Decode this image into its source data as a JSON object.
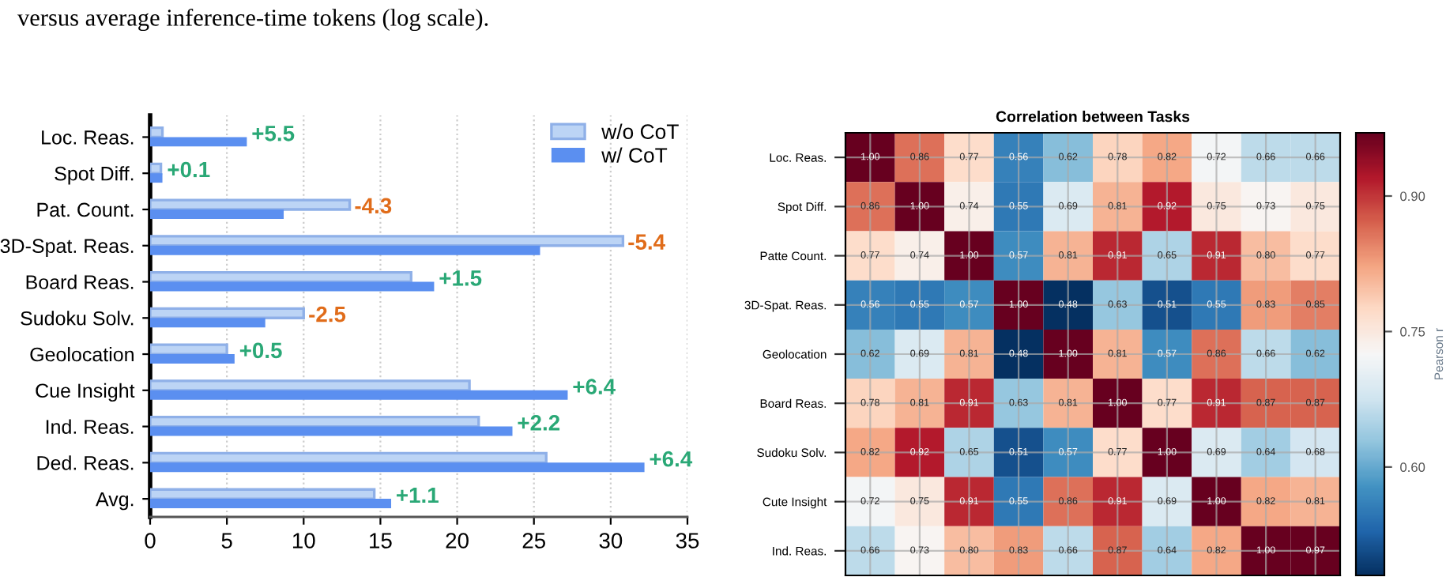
{
  "chart_data": [
    {
      "type": "bar",
      "orientation": "horizontal",
      "categories": [
        "Loc. Reas.",
        "Spot Diff.",
        "Pat. Count.",
        "3D-Spat. Reas.",
        "Board Reas.",
        "Sudoku Solv.",
        "Geolocation",
        "Cue Insight",
        "Ind. Reas.",
        "Ded. Reas.",
        "Avg."
      ],
      "series": [
        {
          "name": "w/o CoT",
          "color": "#bcd4f5",
          "values": [
            0.8,
            0.7,
            13.0,
            30.8,
            17.0,
            10.0,
            5.0,
            20.8,
            21.4,
            25.8,
            14.6
          ]
        },
        {
          "name": "w/ CoT",
          "color": "#5b8ff0",
          "values": [
            6.3,
            0.8,
            8.7,
            25.4,
            18.5,
            7.5,
            5.5,
            27.2,
            23.6,
            32.2,
            15.7
          ]
        }
      ],
      "xlim": [
        0,
        35
      ],
      "xticks": [
        0,
        5,
        10,
        15,
        20,
        25,
        30,
        35
      ],
      "grid": "x",
      "legend": "top right",
      "annotations": [
        "versus average inference-time tokens (log scale).",
        {
          "text": "+5.5",
          "x": 6.3,
          "y": "Loc. Reas."
        },
        {
          "text": "+0.1",
          "x": 0.8,
          "y": "Spot Diff."
        },
        {
          "text": "-4.3",
          "x": 13.0,
          "y": "Pat. Count."
        },
        {
          "text": "-5.4",
          "x": 30.8,
          "y": "3D-Spat. Reas."
        },
        {
          "text": "+1.5",
          "x": 18.5,
          "y": "Board Reas."
        },
        {
          "text": "-2.5",
          "x": 10.0,
          "y": "Sudoku Solv."
        },
        {
          "text": "+0.5",
          "x": 5.5,
          "y": "Geolocation"
        },
        {
          "text": "+6.4",
          "x": 27.2,
          "y": "Cue Insight"
        },
        {
          "text": "+2.2",
          "x": 23.6,
          "y": "Ind. Reas."
        },
        {
          "text": "+6.4",
          "x": 32.2,
          "y": "Ded. Reas."
        },
        {
          "text": "+1.1",
          "x": 15.7,
          "y": "Avg."
        }
      ]
    },
    {
      "type": "heatmap",
      "title": "Correlation between Tasks",
      "clabel": "Pearson r",
      "categories": [
        null,
        null,
        null,
        null,
        null,
        null,
        null,
        null,
        null,
        null
      ],
      "y_categories": [
        "Loc. Reas.",
        "Spot Diff.",
        "Patte Count.",
        "3D-Spat. Reas.",
        "Geolocation",
        "Board Reas.",
        "Sudoku Solv.",
        "Cute Insight",
        "Ind. Reas."
      ],
      "cells": [
        [
          1.0,
          0.86,
          0.77,
          0.56,
          0.62,
          0.78,
          0.82,
          0.72,
          0.66,
          0.66
        ],
        [
          0.86,
          1.0,
          0.74,
          0.55,
          0.69,
          0.81,
          0.92,
          0.75,
          0.73,
          0.75
        ],
        [
          0.77,
          0.74,
          1.0,
          0.57,
          0.81,
          0.91,
          0.65,
          0.91,
          0.8,
          0.77
        ],
        [
          0.56,
          0.55,
          0.57,
          1.0,
          0.48,
          0.63,
          0.51,
          0.55,
          0.83,
          0.85
        ],
        [
          0.62,
          0.69,
          0.81,
          0.48,
          1.0,
          0.81,
          0.57,
          0.86,
          0.66,
          0.62
        ],
        [
          0.78,
          0.81,
          0.91,
          0.63,
          0.81,
          1.0,
          0.77,
          0.91,
          0.87,
          0.87
        ],
        [
          0.82,
          0.92,
          0.65,
          0.51,
          0.57,
          0.77,
          1.0,
          0.69,
          0.64,
          0.68
        ],
        [
          0.72,
          0.75,
          0.91,
          0.55,
          0.86,
          0.91,
          0.69,
          1.0,
          0.82,
          0.81
        ],
        [
          0.66,
          0.73,
          0.8,
          0.83,
          0.66,
          0.87,
          0.64,
          0.82,
          1.0,
          0.97
        ]
      ],
      "cell_labels": [
        [
          "1.00",
          "0.86",
          "0.77",
          "0.56",
          "0.62",
          "0.78",
          "0.82",
          "0.72",
          "0.66",
          "0.66"
        ],
        [
          "0.86",
          "1.00",
          "0.74",
          "0.55",
          "0.69",
          "0.81",
          "0.92",
          "0.75",
          "0.73",
          "0.75"
        ],
        [
          "0.77",
          "0.74",
          "1.00",
          "0.57",
          "0.81",
          "0.91",
          "0.65",
          "0.91",
          "0.80",
          "0.77"
        ],
        [
          "0.56",
          "0.55",
          "0.57",
          "1.00",
          "0.48",
          "0.63",
          "0.51",
          "0.55",
          "0.83",
          "0.85"
        ],
        [
          "0.62",
          "0.69",
          "0.81",
          "0.48",
          "1.00",
          "0.81",
          "0.57",
          "0.86",
          "0.66",
          "0.62"
        ],
        [
          "0.78",
          "0.81",
          "0.91",
          "0.63",
          "0.81",
          "1.00",
          "0.77",
          "0.91",
          "0.87",
          "0.87"
        ],
        [
          "0.82",
          "0.92",
          "0.65",
          "0.51",
          "0.57",
          "0.77",
          "1.00",
          "0.69",
          "0.64",
          "0.68"
        ],
        [
          "0.72",
          "0.75",
          "0.91",
          "0.55",
          "0.86",
          "0.91",
          "0.69",
          "1.00",
          "0.82",
          "0.81"
        ],
        [
          "0.66",
          "0.73",
          "0.80",
          "0.83",
          "0.66",
          "0.87",
          "0.64",
          "0.82",
          "1.00",
          "0.97"
        ]
      ],
      "clim": [
        0.48,
        0.97
      ],
      "cticks": [
        {
          "value": 0.6,
          "label": "0.60"
        },
        0.75,
        {
          "value": 0.9,
          "label": "0.90"
        }
      ],
      "grid": true
    }
  ]
}
